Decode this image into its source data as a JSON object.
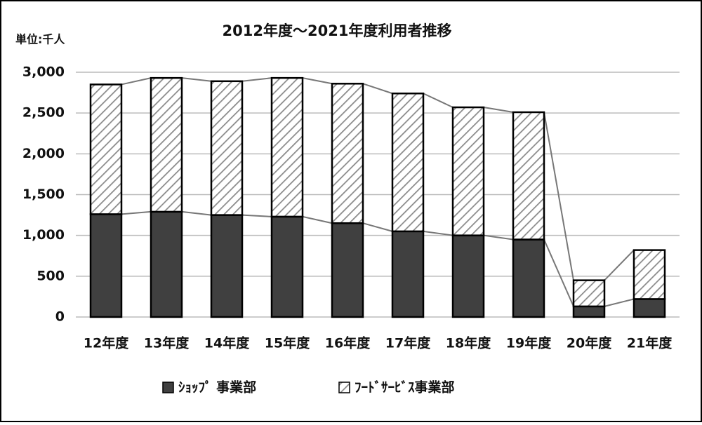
{
  "chart_data": {
    "type": "stacked-bar",
    "title": "2012年度～2021年度利用者推移",
    "unit_label": "単位:千人",
    "categories": [
      "12年度",
      "13年度",
      "14年度",
      "15年度",
      "16年度",
      "17年度",
      "18年度",
      "19年度",
      "20年度",
      "21年度"
    ],
    "series": [
      {
        "name": "ｼｮｯﾌﾟ 事業部",
        "color": "#404040",
        "values": [
          1260,
          1290,
          1250,
          1230,
          1150,
          1050,
          1000,
          950,
          130,
          220
        ]
      },
      {
        "name": "ﾌｰﾄﾞｻｰﾋﾞｽ事業部",
        "color": "#8a8a8a",
        "values": [
          1590,
          1640,
          1640,
          1700,
          1710,
          1690,
          1570,
          1560,
          320,
          600
        ]
      }
    ],
    "ylim": [
      0,
      3000
    ],
    "yticks": [
      0,
      500,
      {
        "value": 1000,
        "label": "1,000"
      },
      {
        "value": 1500,
        "label": "1,500"
      },
      {
        "value": 2000,
        "label": "2,000"
      },
      {
        "value": 2500,
        "label": "2,500"
      },
      {
        "value": 3000,
        "label": "3,000"
      }
    ],
    "grid": true,
    "connector_lines": true,
    "legend": "bottom"
  }
}
